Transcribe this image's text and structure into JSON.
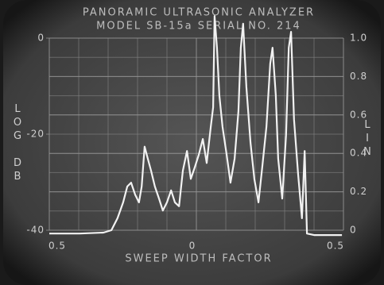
{
  "chart_data": {
    "type": "line",
    "title": "PANORAMIC ULTRASONIC ANALYZER",
    "subtitle": "MODEL SB-15a SERIAL NO. 214",
    "xlabel": "SWEEP WIDTH FACTOR",
    "ylabel": "LOG DB",
    "y2label": "LIN",
    "x": [
      -0.5,
      -0.397,
      -0.316,
      -0.289,
      -0.268,
      -0.249,
      -0.235,
      -0.222,
      -0.208,
      -0.195,
      -0.186,
      -0.176,
      -0.165,
      -0.154,
      -0.141,
      -0.127,
      -0.114,
      -0.1,
      -0.086,
      -0.073,
      -0.059,
      -0.046,
      -0.032,
      -0.019,
      -0.005,
      0.008,
      0.022,
      0.035,
      0.049,
      0.057,
      0.062,
      0.07,
      0.078,
      0.089,
      0.103,
      0.116,
      0.13,
      0.143,
      0.151,
      0.159,
      0.17,
      0.184,
      0.197,
      0.211,
      0.224,
      0.238,
      0.251,
      0.259,
      0.27,
      0.278,
      0.292,
      0.305,
      0.314,
      0.322,
      0.332,
      0.346,
      0.359,
      0.368,
      0.376,
      0.4,
      0.495
    ],
    "series": [
      {
        "color": "#f2f2f2",
        "values": [
          -40.7,
          -40.7,
          -40.5,
          -40.0,
          -37.5,
          -34.2,
          -30.9,
          -30.1,
          -32.6,
          -34.2,
          -30.9,
          -22.6,
          -25.1,
          -27.6,
          -30.9,
          -33.4,
          -35.9,
          -34.2,
          -31.7,
          -34.2,
          -35.0,
          -27.6,
          -23.5,
          -29.3,
          -26.8,
          -24.3,
          -21.0,
          -26.0,
          -18.5,
          -14.4,
          4.6,
          -2.0,
          -11.9,
          -18.5,
          -24.3,
          -30.1,
          -25.1,
          -15.2,
          -2.0,
          3.0,
          -10.2,
          -21.8,
          -29.3,
          -34.2,
          -26.8,
          -18.5,
          -5.3,
          -2.0,
          -11.9,
          -25.1,
          -33.4,
          -20.2,
          -2.0,
          1.3,
          -16.9,
          -28.4,
          -37.5,
          -23.5,
          -40.7,
          -41.0,
          -41.0
        ]
      }
    ],
    "xlim": [
      -0.5,
      0.5
    ],
    "xticks": [
      {
        "value": -0.5,
        "label": "0.5"
      },
      0,
      {
        "value": 0.5,
        "label": "0.5"
      }
    ],
    "ylim": [
      -40,
      0
    ],
    "yticks": [
      0,
      -20,
      -40
    ],
    "y2lim": [
      0,
      1
    ],
    "y2ticks": [
      0,
      0.2,
      0.4,
      0.6,
      0.8,
      {
        "value": 1,
        "label": "1.0"
      }
    ],
    "grid": true
  }
}
